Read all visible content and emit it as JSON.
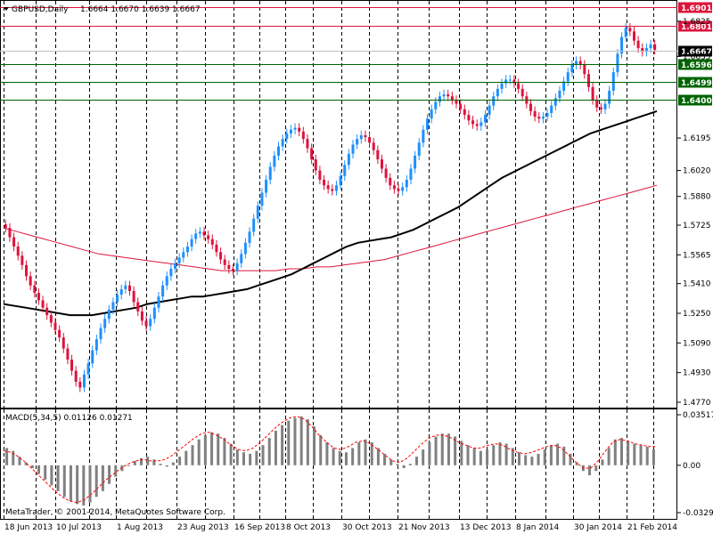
{
  "header": {
    "symbol_timeframe": "GBPUSD,Daily",
    "ohlc": "1.6664 1.6670 1.6639 1.6667"
  },
  "macd_title": "MACD(5,34,5) 0.01126 0.01271",
  "copyright": "MetaTrader, © 2001-2014, MetaQuotes Software Corp.",
  "colors": {
    "bull_candle": "#1e90ff",
    "bear_candle": "#dc143c",
    "ma_black": "#000000",
    "ma_red": "#dc143c",
    "resistance": "#dc143c",
    "support": "#006400",
    "macd_hist": "#808080",
    "macd_signal": "#ff0000"
  },
  "chart_data": [
    {
      "type": "line",
      "name": "price",
      "xlabel": "",
      "ylabel": "",
      "ylim": [
        1.477,
        1.6901
      ],
      "y_ticks": [
        "1.6825",
        "1.6635",
        "1.6195",
        "1.6020",
        "1.5880",
        "1.5725",
        "1.5565",
        "1.5410",
        "1.5250",
        "1.5090",
        "1.4930",
        "1.4770"
      ],
      "x_ticks": [
        "18 Jun 2013",
        "10 Jul 2013",
        "1 Aug 2013",
        "23 Aug 2013",
        "16 Sep 2013",
        "8 Oct 2013",
        "30 Oct 2013",
        "21 Nov 2013",
        "13 Dec 2013",
        "8 Jan 2014",
        "30 Jan 2014",
        "21 Feb 2014"
      ],
      "levels": [
        {
          "value": "1.6901",
          "kind": "resistance"
        },
        {
          "value": "1.6801",
          "kind": "resistance"
        },
        {
          "value": "1.6667",
          "kind": "current"
        },
        {
          "value": "1.6596",
          "kind": "support"
        },
        {
          "value": "1.6499",
          "kind": "support"
        },
        {
          "value": "1.6400",
          "kind": "support"
        }
      ],
      "close": [
        1.571,
        1.566,
        1.561,
        1.556,
        1.551,
        1.545,
        1.54,
        1.536,
        1.532,
        1.528,
        1.524,
        1.52,
        1.516,
        1.512,
        1.506,
        1.5,
        1.494,
        1.488,
        1.485,
        1.492,
        1.498,
        1.505,
        1.511,
        1.517,
        1.522,
        1.527,
        1.531,
        1.535,
        1.538,
        1.54,
        1.537,
        1.531,
        1.526,
        1.521,
        1.518,
        1.522,
        1.528,
        1.534,
        1.54,
        1.545,
        1.549,
        1.552,
        1.555,
        1.558,
        1.561,
        1.565,
        1.568,
        1.569,
        1.567,
        1.565,
        1.562,
        1.558,
        1.554,
        1.551,
        1.549,
        1.548,
        1.552,
        1.557,
        1.563,
        1.569,
        1.576,
        1.583,
        1.59,
        1.597,
        1.604,
        1.61,
        1.615,
        1.619,
        1.622,
        1.624,
        1.625,
        1.623,
        1.619,
        1.614,
        1.608,
        1.602,
        1.597,
        1.594,
        1.592,
        1.591,
        1.594,
        1.599,
        1.605,
        1.611,
        1.616,
        1.619,
        1.621,
        1.62,
        1.617,
        1.613,
        1.608,
        1.603,
        1.598,
        1.594,
        1.592,
        1.591,
        1.593,
        1.597,
        1.603,
        1.61,
        1.617,
        1.624,
        1.63,
        1.635,
        1.639,
        1.642,
        1.643,
        1.642,
        1.64,
        1.638,
        1.635,
        1.632,
        1.629,
        1.627,
        1.626,
        1.628,
        1.632,
        1.637,
        1.642,
        1.646,
        1.649,
        1.651,
        1.651,
        1.649,
        1.646,
        1.642,
        1.638,
        1.634,
        1.631,
        1.63,
        1.631,
        1.633,
        1.637,
        1.641,
        1.645,
        1.65,
        1.655,
        1.659,
        1.661,
        1.659,
        1.654,
        1.647,
        1.64,
        1.636,
        1.635,
        1.638,
        1.645,
        1.655,
        1.665,
        1.674,
        1.679,
        1.677,
        1.672,
        1.668,
        1.666,
        1.668,
        1.67,
        1.667
      ],
      "ma_black": [
        1.53,
        1.529,
        1.528,
        1.527,
        1.526,
        1.525,
        1.524,
        1.524,
        1.524,
        1.525,
        1.526,
        1.527,
        1.528,
        1.53,
        1.531,
        1.532,
        1.533,
        1.534,
        1.534,
        1.535,
        1.536,
        1.537,
        1.538,
        1.54,
        1.542,
        1.544,
        1.546,
        1.549,
        1.552,
        1.555,
        1.558,
        1.561,
        1.563,
        1.564,
        1.565,
        1.566,
        1.568,
        1.57,
        1.573,
        1.576,
        1.579,
        1.582,
        1.586,
        1.59,
        1.594,
        1.598,
        1.601,
        1.604,
        1.607,
        1.61,
        1.613,
        1.616,
        1.619,
        1.622,
        1.624,
        1.626,
        1.628,
        1.63,
        1.632,
        1.634
      ],
      "ma_red": [
        1.571,
        1.569,
        1.567,
        1.565,
        1.563,
        1.561,
        1.559,
        1.557,
        1.556,
        1.555,
        1.554,
        1.553,
        1.552,
        1.551,
        1.55,
        1.549,
        1.548,
        1.548,
        1.548,
        1.548,
        1.548,
        1.549,
        1.549,
        1.55,
        1.55,
        1.551,
        1.552,
        1.553,
        1.554,
        1.556,
        1.558,
        1.56,
        1.562,
        1.564,
        1.566,
        1.568,
        1.57,
        1.572,
        1.574,
        1.576,
        1.578,
        1.58,
        1.582,
        1.584,
        1.586,
        1.588,
        1.59,
        1.592,
        1.594
      ]
    },
    {
      "type": "bar",
      "name": "MACD",
      "ylim": [
        -0.03297,
        0.03517
      ],
      "y_ticks": [
        "0.03517",
        "0.00",
        "-0.03297"
      ],
      "values": [
        0.012,
        0.01,
        0.006,
        0.002,
        -0.002,
        -0.006,
        -0.01,
        -0.014,
        -0.018,
        -0.022,
        -0.025,
        -0.027,
        -0.028,
        -0.026,
        -0.022,
        -0.018,
        -0.013,
        -0.008,
        -0.004,
        0.0,
        0.003,
        0.005,
        0.006,
        0.004,
        0.001,
        -0.001,
        0.002,
        0.006,
        0.01,
        0.014,
        0.018,
        0.021,
        0.023,
        0.022,
        0.019,
        0.015,
        0.011,
        0.009,
        0.008,
        0.01,
        0.014,
        0.019,
        0.024,
        0.028,
        0.031,
        0.033,
        0.034,
        0.032,
        0.027,
        0.021,
        0.016,
        0.012,
        0.01,
        0.009,
        0.012,
        0.016,
        0.018,
        0.016,
        0.012,
        0.008,
        0.004,
        0.001,
        -0.002,
        0.001,
        0.006,
        0.011,
        0.016,
        0.02,
        0.022,
        0.022,
        0.02,
        0.017,
        0.014,
        0.012,
        0.01,
        0.011,
        0.014,
        0.016,
        0.015,
        0.012,
        0.009,
        0.007,
        0.006,
        0.008,
        0.011,
        0.014,
        0.015,
        0.013,
        0.008,
        0.002,
        -0.004,
        -0.007,
        -0.004,
        0.004,
        0.012,
        0.018,
        0.019,
        0.017,
        0.015,
        0.014,
        0.013,
        0.011
      ],
      "signal": [
        0.01,
        0.009,
        0.006,
        0.002,
        -0.003,
        -0.008,
        -0.013,
        -0.018,
        -0.022,
        -0.025,
        -0.026,
        -0.024,
        -0.02,
        -0.015,
        -0.01,
        -0.006,
        -0.002,
        0.001,
        0.003,
        0.004,
        0.003,
        0.003,
        0.004,
        0.007,
        0.011,
        0.015,
        0.019,
        0.022,
        0.023,
        0.021,
        0.018,
        0.014,
        0.011,
        0.01,
        0.012,
        0.016,
        0.021,
        0.026,
        0.03,
        0.033,
        0.034,
        0.032,
        0.027,
        0.021,
        0.016,
        0.012,
        0.011,
        0.013,
        0.016,
        0.017,
        0.015,
        0.011,
        0.007,
        0.003,
        0.002,
        0.005,
        0.01,
        0.015,
        0.019,
        0.021,
        0.021,
        0.019,
        0.016,
        0.014,
        0.012,
        0.012,
        0.014,
        0.015,
        0.014,
        0.011,
        0.009,
        0.008,
        0.009,
        0.011,
        0.013,
        0.014,
        0.012,
        0.007,
        0.002,
        -0.002,
        -0.002,
        0.003,
        0.01,
        0.016,
        0.018,
        0.017,
        0.015,
        0.014,
        0.013,
        0.013
      ]
    }
  ]
}
